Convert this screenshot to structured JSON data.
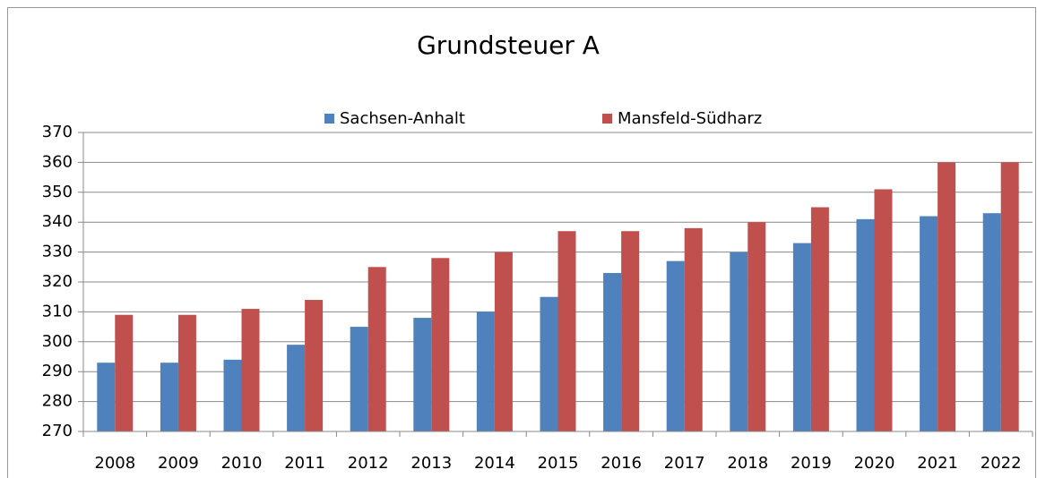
{
  "chart_data": {
    "type": "bar",
    "title": "Grundsteuer A",
    "categories": [
      "2008",
      "2009",
      "2010",
      "2011",
      "2012",
      "2013",
      "2014",
      "2015",
      "2016",
      "2017",
      "2018",
      "2019",
      "2020",
      "2021",
      "2022"
    ],
    "series": [
      {
        "name": "Sachsen-Anhalt",
        "color": "#4f81bd",
        "values": [
          293,
          293,
          294,
          299,
          305,
          308,
          310,
          315,
          323,
          327,
          330,
          333,
          341,
          342,
          343
        ]
      },
      {
        "name": "Mansfeld-Südharz",
        "color": "#c0504d",
        "values": [
          309,
          309,
          311,
          314,
          325,
          328,
          330,
          337,
          337,
          338,
          340,
          345,
          351,
          360,
          360
        ]
      }
    ],
    "ylim": [
      270,
      370
    ],
    "yticks": [
      270,
      280,
      290,
      300,
      310,
      320,
      330,
      340,
      350,
      360,
      370
    ],
    "grid": true,
    "legend": "top"
  }
}
